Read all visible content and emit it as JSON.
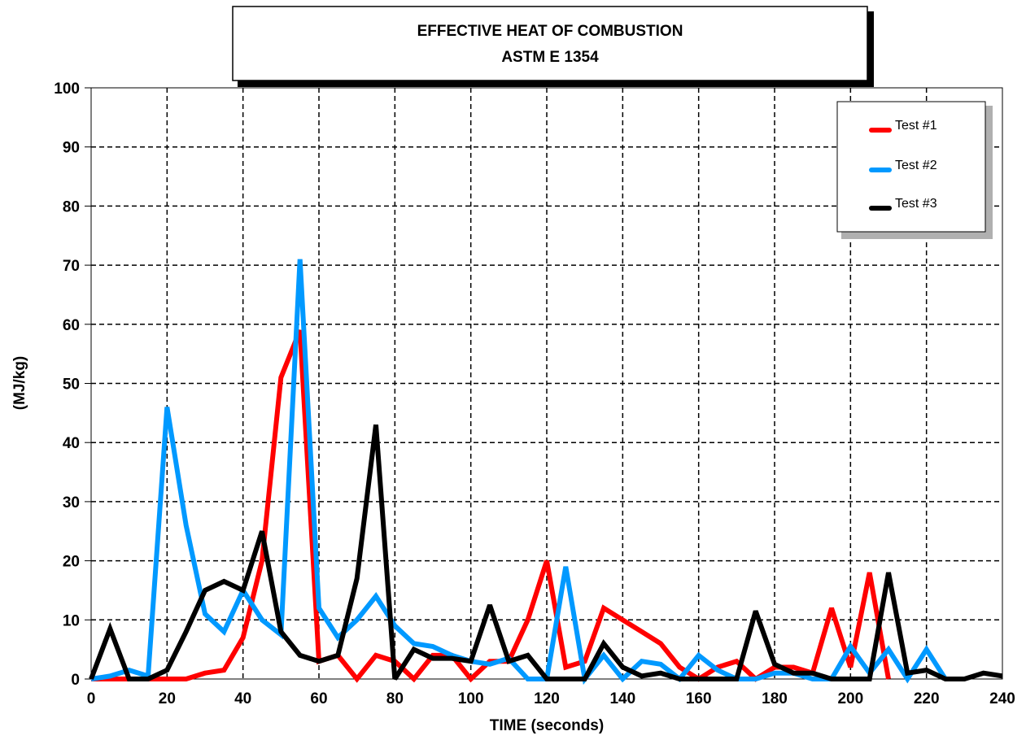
{
  "chart_data": {
    "type": "line",
    "title": "EFFECTIVE HEAT OF COMBUSTION",
    "subtitle": "ASTM E 1354",
    "xlabel": "TIME (seconds)",
    "ylabel": "(MJ/kg)",
    "xlim": [
      0,
      240
    ],
    "ylim": [
      0,
      100
    ],
    "xticks": [
      "0",
      "20",
      "40",
      "60",
      "80",
      "100",
      "120",
      "140",
      "160",
      "180",
      "200",
      "220",
      "240"
    ],
    "yticks": [
      "0",
      "10",
      "20",
      "30",
      "40",
      "50",
      "60",
      "70",
      "80",
      "90",
      "100"
    ],
    "grid": true,
    "legend_position": "top-right",
    "series": [
      {
        "name": "Test #1",
        "color": "#ff0000",
        "points": [
          [
            0,
            0
          ],
          [
            5,
            0
          ],
          [
            10,
            0
          ],
          [
            15,
            0
          ],
          [
            20,
            0
          ],
          [
            25,
            0
          ],
          [
            30,
            1
          ],
          [
            35,
            1.5
          ],
          [
            40,
            7
          ],
          [
            45,
            20
          ],
          [
            50,
            51
          ],
          [
            55,
            59
          ],
          [
            60,
            3
          ],
          [
            65,
            4
          ],
          [
            70,
            0
          ],
          [
            75,
            4
          ],
          [
            80,
            3
          ],
          [
            85,
            0
          ],
          [
            90,
            4
          ],
          [
            95,
            4
          ],
          [
            100,
            0
          ],
          [
            105,
            3
          ],
          [
            110,
            3
          ],
          [
            115,
            10
          ],
          [
            120,
            20
          ],
          [
            125,
            2
          ],
          [
            130,
            3
          ],
          [
            135,
            12
          ],
          [
            140,
            10
          ],
          [
            145,
            8
          ],
          [
            150,
            6
          ],
          [
            155,
            2
          ],
          [
            160,
            0
          ],
          [
            165,
            2
          ],
          [
            170,
            3
          ],
          [
            175,
            0
          ],
          [
            180,
            2
          ],
          [
            185,
            2
          ],
          [
            190,
            1
          ],
          [
            195,
            12
          ],
          [
            200,
            2
          ],
          [
            205,
            18
          ],
          [
            210,
            0
          ]
        ]
      },
      {
        "name": "Test #2",
        "color": "#0099ff",
        "points": [
          [
            0,
            0
          ],
          [
            5,
            0.5
          ],
          [
            10,
            1.5
          ],
          [
            15,
            0.5
          ],
          [
            20,
            46
          ],
          [
            25,
            26
          ],
          [
            30,
            11
          ],
          [
            35,
            8
          ],
          [
            40,
            15
          ],
          [
            45,
            10
          ],
          [
            50,
            7.5
          ],
          [
            55,
            71
          ],
          [
            60,
            12
          ],
          [
            65,
            7
          ],
          [
            70,
            10
          ],
          [
            75,
            14
          ],
          [
            80,
            9
          ],
          [
            85,
            6
          ],
          [
            90,
            5.5
          ],
          [
            95,
            4
          ],
          [
            100,
            3
          ],
          [
            105,
            2.5
          ],
          [
            110,
            3.5
          ],
          [
            115,
            0
          ],
          [
            120,
            0
          ],
          [
            125,
            19
          ],
          [
            130,
            0
          ],
          [
            135,
            4
          ],
          [
            140,
            0
          ],
          [
            145,
            3
          ],
          [
            150,
            2.5
          ],
          [
            155,
            0
          ],
          [
            160,
            4
          ],
          [
            165,
            1.5
          ],
          [
            170,
            0
          ],
          [
            175,
            0
          ],
          [
            180,
            1
          ],
          [
            185,
            1
          ],
          [
            190,
            0
          ],
          [
            195,
            0
          ],
          [
            200,
            5.5
          ],
          [
            205,
            1
          ],
          [
            210,
            5
          ],
          [
            215,
            0
          ],
          [
            220,
            5
          ],
          [
            225,
            0
          ]
        ]
      },
      {
        "name": "Test #3",
        "color": "#000000",
        "points": [
          [
            0,
            0
          ],
          [
            5,
            8.5
          ],
          [
            10,
            0
          ],
          [
            15,
            0
          ],
          [
            20,
            1.5
          ],
          [
            25,
            8
          ],
          [
            30,
            15
          ],
          [
            35,
            16.5
          ],
          [
            40,
            15
          ],
          [
            45,
            25
          ],
          [
            50,
            8
          ],
          [
            55,
            4
          ],
          [
            60,
            3
          ],
          [
            65,
            4
          ],
          [
            70,
            17
          ],
          [
            75,
            43
          ],
          [
            80,
            0
          ],
          [
            85,
            5
          ],
          [
            90,
            3.5
          ],
          [
            95,
            3.5
          ],
          [
            100,
            3
          ],
          [
            105,
            12.5
          ],
          [
            110,
            3
          ],
          [
            115,
            4
          ],
          [
            120,
            0
          ],
          [
            125,
            0
          ],
          [
            130,
            0
          ],
          [
            135,
            6
          ],
          [
            140,
            2
          ],
          [
            145,
            0.5
          ],
          [
            150,
            1
          ],
          [
            155,
            0
          ],
          [
            160,
            0
          ],
          [
            165,
            0
          ],
          [
            170,
            0
          ],
          [
            175,
            11.5
          ],
          [
            180,
            2.5
          ],
          [
            185,
            1
          ],
          [
            190,
            1
          ],
          [
            195,
            0
          ],
          [
            200,
            0
          ],
          [
            205,
            0
          ],
          [
            210,
            18
          ],
          [
            215,
            1
          ],
          [
            220,
            1.5
          ],
          [
            225,
            0
          ],
          [
            230,
            0
          ],
          [
            235,
            1
          ],
          [
            240,
            0.5
          ]
        ]
      }
    ]
  }
}
